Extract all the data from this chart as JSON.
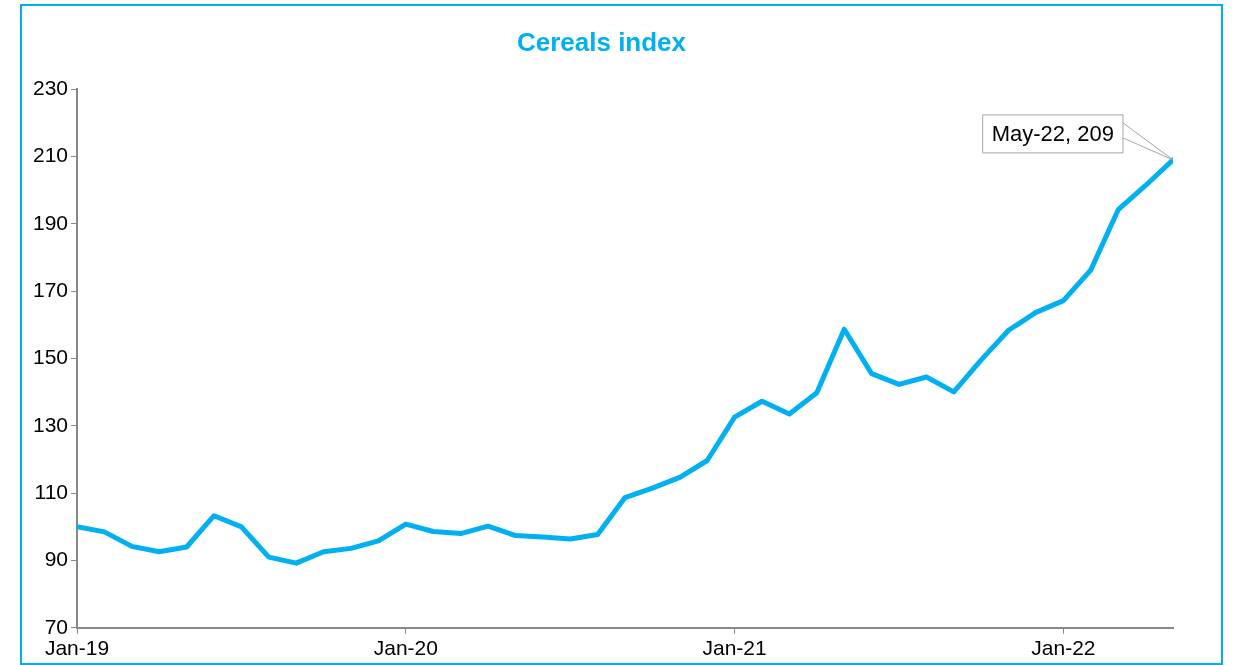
{
  "chart_data": {
    "type": "line",
    "title": "Cereals index",
    "x": [
      "2019-01",
      "2019-02",
      "2019-03",
      "2019-04",
      "2019-05",
      "2019-06",
      "2019-07",
      "2019-08",
      "2019-09",
      "2019-10",
      "2019-11",
      "2019-12",
      "2020-01",
      "2020-02",
      "2020-03",
      "2020-04",
      "2020-05",
      "2020-06",
      "2020-07",
      "2020-08",
      "2020-09",
      "2020-10",
      "2020-11",
      "2020-12",
      "2021-01",
      "2021-02",
      "2021-03",
      "2021-04",
      "2021-05",
      "2021-06",
      "2021-07",
      "2021-08",
      "2021-09",
      "2021-10",
      "2021-11",
      "2021-12",
      "2022-01",
      "2022-02",
      "2022-03",
      "2022-04",
      "2022-05"
    ],
    "series": [
      {
        "color": "#00b0f0",
        "values": [
          100,
          98.5,
          94.2,
          92.6,
          94,
          103.3,
          100,
          91,
          89.2,
          92.6,
          93.6,
          95.8,
          100.8,
          98.6,
          98,
          100.2,
          97.4,
          97,
          96.4,
          97.7,
          108.7,
          111.5,
          114.7,
          119.7,
          132.6,
          137.3,
          133.5,
          139.8,
          158.7,
          145.5,
          142.3,
          144.5,
          140.1,
          149.6,
          158.4,
          163.7,
          167.2,
          176.3,
          194.2,
          201.4,
          209
        ]
      }
    ],
    "xlim": [
      "2019-01",
      "2022-05"
    ],
    "xticks": [
      {
        "value": "2019-01",
        "label": "Jan-19"
      },
      {
        "value": "2020-01",
        "label": "Jan-20"
      },
      {
        "value": "2021-01",
        "label": "Jan-21"
      },
      {
        "value": "2022-01",
        "label": "Jan-22"
      }
    ],
    "ylim": [
      70,
      230
    ],
    "yticks": [
      70,
      90,
      110,
      130,
      150,
      170,
      190,
      210,
      230
    ],
    "grid": false,
    "legend": false,
    "marker": "none",
    "line_style": "solid",
    "annotations": [
      {
        "text": "May-22, 209",
        "x": "2022-05",
        "y": 209
      }
    ]
  }
}
